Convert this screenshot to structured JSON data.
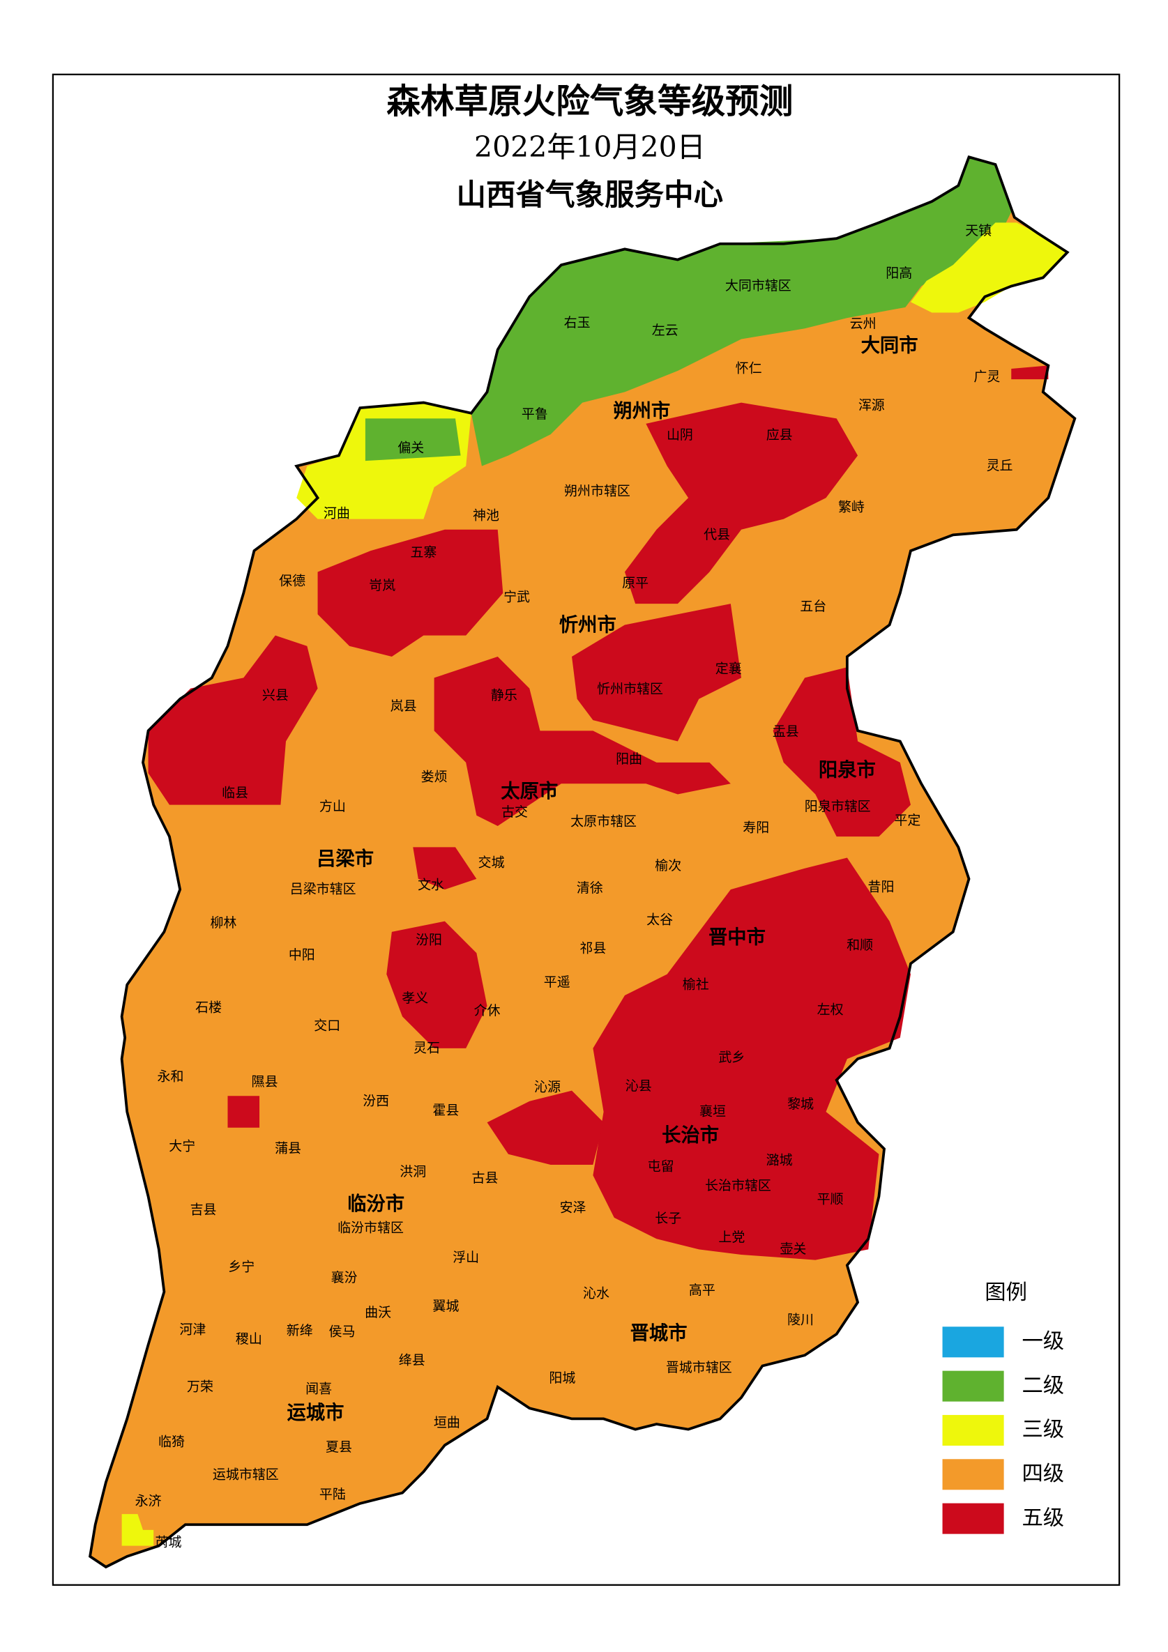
{
  "header": {
    "title": "森林草原火险气象等级预测",
    "date": "2022年10月20日",
    "issuer": "山西省气象服务中心"
  },
  "legend": {
    "title": "图例",
    "items": [
      {
        "label": "一级",
        "color": "#1aa6e0"
      },
      {
        "label": "二级",
        "color": "#5fb22f"
      },
      {
        "label": "三级",
        "color": "#eef70c"
      },
      {
        "label": "四级",
        "color": "#f39a2a"
      },
      {
        "label": "五级",
        "color": "#cc0a1c"
      }
    ]
  },
  "cities": [
    "大同市",
    "朔州市",
    "忻州市",
    "太原市",
    "阳泉市",
    "吕梁市",
    "晋中市",
    "长治市",
    "临汾市",
    "晋城市",
    "运城市"
  ],
  "counties": [
    "天镇",
    "阳高",
    "大同市辖区",
    "左云",
    "右玉",
    "云州",
    "怀仁",
    "广灵",
    "浑源",
    "平鲁",
    "山阴",
    "应县",
    "偏关",
    "灵丘",
    "朔州市辖区",
    "河曲",
    "繁峙",
    "神池",
    "代县",
    "五寨",
    "保德",
    "原平",
    "岢岚",
    "宁武",
    "五台",
    "定襄",
    "兴县",
    "忻州市辖区",
    "静乐",
    "岚县",
    "盂县",
    "阳曲",
    "娄烦",
    "临县",
    "方山",
    "古交",
    "阳泉市辖区",
    "平定",
    "太原市辖区",
    "寿阳",
    "交城",
    "文水",
    "吕梁市辖区",
    "昔阳",
    "清徐",
    "榆次",
    "柳林",
    "太谷",
    "汾阳",
    "和顺",
    "中阳",
    "祁县",
    "平遥",
    "榆社",
    "孝义",
    "介休",
    "石楼",
    "左权",
    "交口",
    "灵石",
    "武乡",
    "永和",
    "隰县",
    "沁源",
    "沁县",
    "汾西",
    "黎城",
    "襄垣",
    "霍县",
    "大宁",
    "蒲县",
    "潞城",
    "屯留",
    "洪洞",
    "古县",
    "长治市辖区",
    "平顺",
    "吉县",
    "安泽",
    "临汾市辖区",
    "长子",
    "上党",
    "壶关",
    "乡宁",
    "浮山",
    "襄汾",
    "曲沃",
    "高平",
    "沁水",
    "翼城",
    "陵川",
    "河津",
    "稷山",
    "新绛",
    "侯马",
    "绛县",
    "阳城",
    "晋城市辖区",
    "万荣",
    "闻喜",
    "垣曲",
    "临猗",
    "夏县",
    "运城市辖区",
    "平陆",
    "永济",
    "芮城"
  ]
}
